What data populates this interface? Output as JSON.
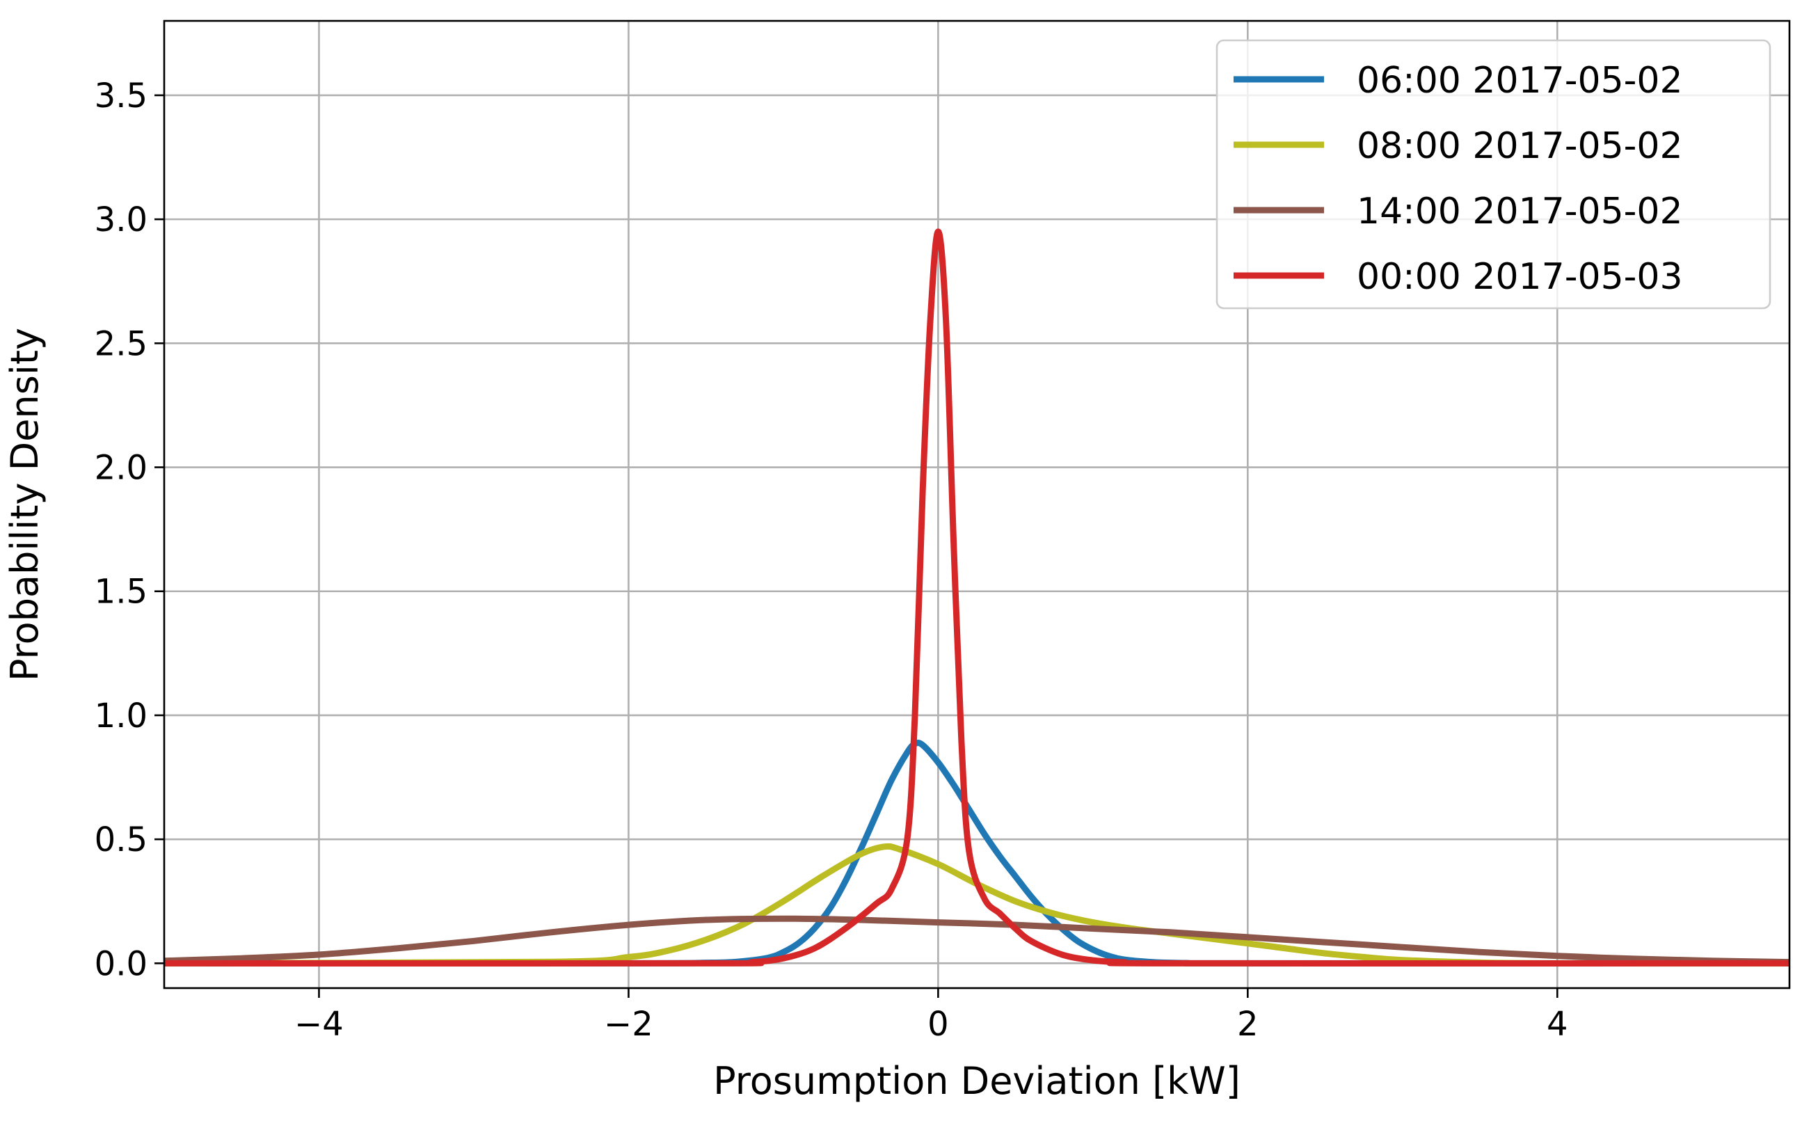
{
  "chart_data": {
    "type": "line",
    "title": "",
    "xlabel": "Prosumption Deviation [kW]",
    "ylabel": "Probability Density",
    "xlim": [
      -5,
      5.5
    ],
    "ylim": [
      -0.1,
      3.8
    ],
    "grid": true,
    "legend_position": "top-right",
    "x_ticks": [
      -4,
      -2,
      0,
      2,
      4
    ],
    "x_tick_labels": [
      "−4",
      "−2",
      "0",
      "2",
      "4"
    ],
    "y_ticks": [
      0.0,
      0.5,
      1.0,
      1.5,
      2.0,
      2.5,
      3.0,
      3.5
    ],
    "y_tick_labels": [
      "0.0",
      "0.5",
      "1.0",
      "1.5",
      "2.0",
      "2.5",
      "3.0",
      "3.5"
    ],
    "series": [
      {
        "name": "06:00 2017-05-02",
        "color": "#1f77b4",
        "x": [
          -5.0,
          -2.0,
          -1.5,
          -1.3,
          -1.1,
          -1.0,
          -0.9,
          -0.8,
          -0.7,
          -0.6,
          -0.5,
          -0.4,
          -0.3,
          -0.2,
          -0.15,
          -0.1,
          0.0,
          0.1,
          0.2,
          0.3,
          0.4,
          0.5,
          0.6,
          0.7,
          0.8,
          0.9,
          1.0,
          1.1,
          1.2,
          1.4,
          1.6,
          2.0,
          5.5
        ],
        "y": [
          0.0,
          0.0,
          0.002,
          0.006,
          0.022,
          0.045,
          0.082,
          0.14,
          0.22,
          0.33,
          0.46,
          0.6,
          0.74,
          0.85,
          0.885,
          0.88,
          0.81,
          0.72,
          0.62,
          0.52,
          0.43,
          0.35,
          0.27,
          0.2,
          0.14,
          0.09,
          0.055,
          0.03,
          0.015,
          0.004,
          0.001,
          0.0,
          0.0
        ]
      },
      {
        "name": "08:00 2017-05-02",
        "color": "#bcbd22",
        "x": [
          -5.0,
          -2.5,
          -2.0,
          -1.75,
          -1.5,
          -1.25,
          -1.0,
          -0.75,
          -0.5,
          -0.35,
          -0.25,
          0.0,
          0.25,
          0.5,
          0.75,
          1.0,
          1.25,
          1.5,
          1.75,
          2.0,
          2.25,
          2.5,
          2.75,
          3.0,
          3.5,
          4.0,
          5.5
        ],
        "y": [
          0.0,
          0.006,
          0.025,
          0.05,
          0.095,
          0.16,
          0.25,
          0.35,
          0.44,
          0.47,
          0.46,
          0.4,
          0.32,
          0.25,
          0.2,
          0.165,
          0.14,
          0.12,
          0.1,
          0.08,
          0.06,
          0.04,
          0.025,
          0.013,
          0.003,
          0.0,
          0.0
        ]
      },
      {
        "name": "14:00 2017-05-02",
        "color": "#8c564b",
        "x": [
          -5.0,
          -4.5,
          -4.0,
          -3.5,
          -3.0,
          -2.5,
          -2.0,
          -1.5,
          -1.0,
          -0.5,
          0.0,
          0.5,
          1.0,
          1.5,
          2.0,
          2.5,
          3.0,
          3.5,
          4.0,
          4.5,
          5.0,
          5.5
        ],
        "y": [
          0.01,
          0.02,
          0.035,
          0.06,
          0.09,
          0.125,
          0.155,
          0.175,
          0.18,
          0.175,
          0.165,
          0.155,
          0.14,
          0.125,
          0.105,
          0.085,
          0.065,
          0.045,
          0.03,
          0.018,
          0.01,
          0.005
        ]
      },
      {
        "name": "00:00 2017-05-03",
        "color": "#d62728",
        "x": [
          -5.0,
          -1.5,
          -1.2,
          -1.0,
          -0.8,
          -0.6,
          -0.4,
          -0.3,
          -0.2,
          -0.15,
          -0.1,
          -0.05,
          0.0,
          0.05,
          0.1,
          0.15,
          0.2,
          0.3,
          0.4,
          0.5,
          0.6,
          0.8,
          1.0,
          1.2,
          1.5,
          5.5
        ],
        "y": [
          0.0,
          0.0,
          0.005,
          0.02,
          0.06,
          0.14,
          0.24,
          0.3,
          0.5,
          1.0,
          1.9,
          2.6,
          2.95,
          2.6,
          1.7,
          0.9,
          0.45,
          0.26,
          0.2,
          0.14,
          0.09,
          0.035,
          0.012,
          0.004,
          0.0,
          0.0
        ]
      }
    ]
  }
}
